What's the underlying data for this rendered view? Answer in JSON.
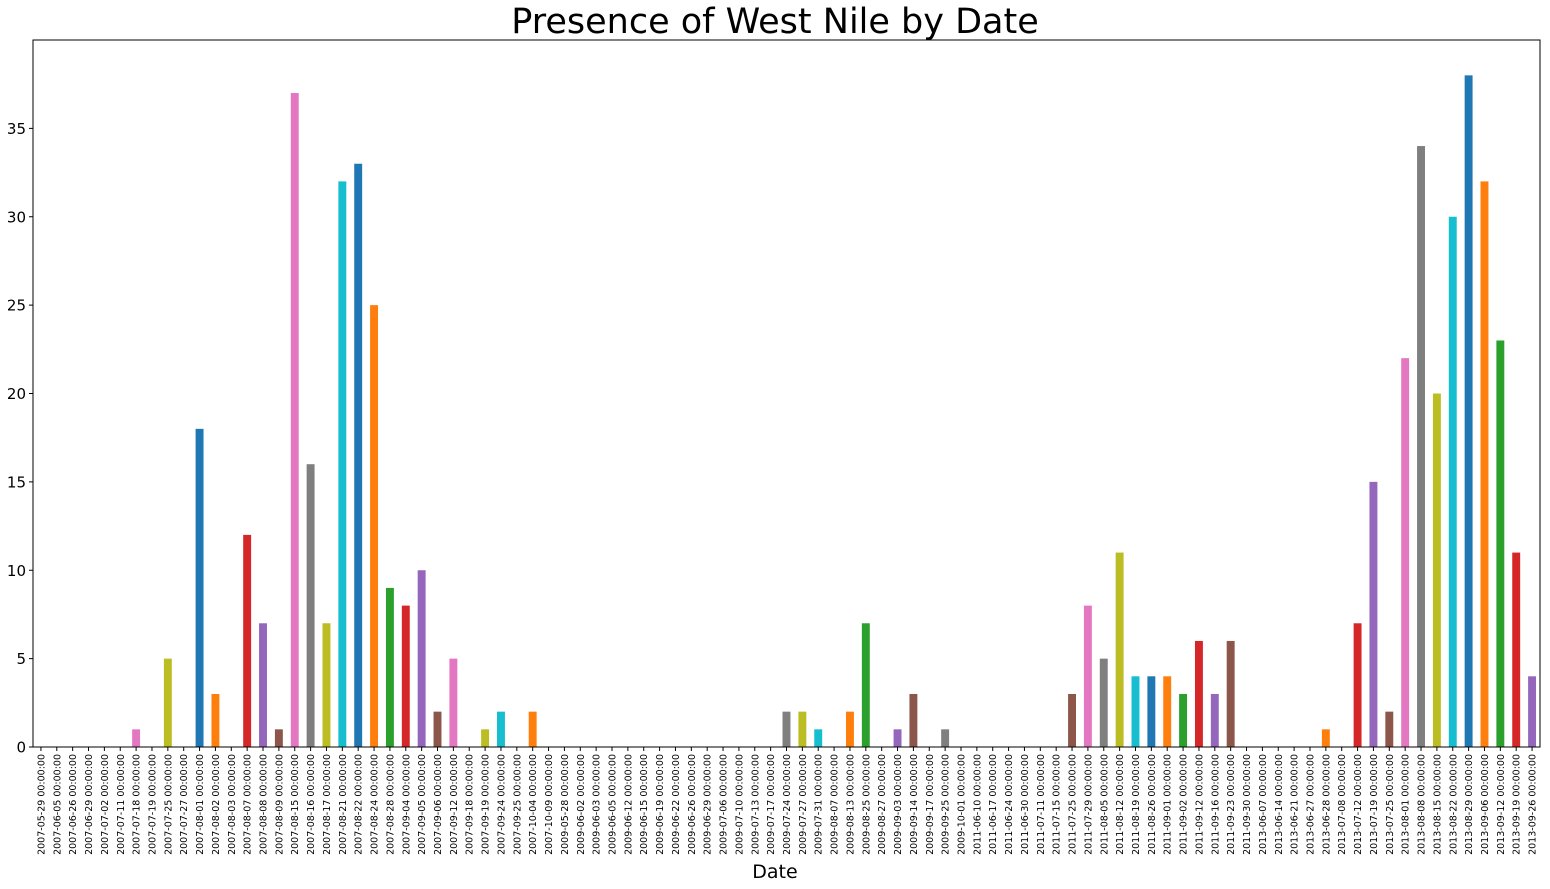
{
  "chart_data": {
    "type": "bar",
    "title": "Presence of West Nile by Date",
    "xlabel": "Date",
    "ylabel": "",
    "ylim": [
      0,
      40
    ],
    "yticks": [
      0,
      5,
      10,
      15,
      20,
      25,
      30,
      35
    ],
    "grid": false,
    "legend": "none",
    "palette": [
      "#1f77b4",
      "#ff7f0e",
      "#2ca02c",
      "#d62728",
      "#9467bd",
      "#8c564b",
      "#e377c2",
      "#7f7f7f",
      "#bcbd22",
      "#17becf"
    ],
    "categories": [
      "2007-05-29 00:00:00",
      "2007-06-05 00:00:00",
      "2007-06-26 00:00:00",
      "2007-06-29 00:00:00",
      "2007-07-02 00:00:00",
      "2007-07-11 00:00:00",
      "2007-07-18 00:00:00",
      "2007-07-19 00:00:00",
      "2007-07-25 00:00:00",
      "2007-07-27 00:00:00",
      "2007-08-01 00:00:00",
      "2007-08-02 00:00:00",
      "2007-08-03 00:00:00",
      "2007-08-07 00:00:00",
      "2007-08-08 00:00:00",
      "2007-08-09 00:00:00",
      "2007-08-15 00:00:00",
      "2007-08-16 00:00:00",
      "2007-08-17 00:00:00",
      "2007-08-21 00:00:00",
      "2007-08-22 00:00:00",
      "2007-08-24 00:00:00",
      "2007-08-28 00:00:00",
      "2007-09-04 00:00:00",
      "2007-09-05 00:00:00",
      "2007-09-06 00:00:00",
      "2007-09-12 00:00:00",
      "2007-09-18 00:00:00",
      "2007-09-19 00:00:00",
      "2007-09-24 00:00:00",
      "2007-09-25 00:00:00",
      "2007-10-04 00:00:00",
      "2007-10-09 00:00:00",
      "2009-05-28 00:00:00",
      "2009-06-02 00:00:00",
      "2009-06-03 00:00:00",
      "2009-06-05 00:00:00",
      "2009-06-12 00:00:00",
      "2009-06-15 00:00:00",
      "2009-06-19 00:00:00",
      "2009-06-22 00:00:00",
      "2009-06-26 00:00:00",
      "2009-06-29 00:00:00",
      "2009-07-06 00:00:00",
      "2009-07-10 00:00:00",
      "2009-07-13 00:00:00",
      "2009-07-17 00:00:00",
      "2009-07-24 00:00:00",
      "2009-07-27 00:00:00",
      "2009-07-31 00:00:00",
      "2009-08-07 00:00:00",
      "2009-08-13 00:00:00",
      "2009-08-25 00:00:00",
      "2009-08-27 00:00:00",
      "2009-09-03 00:00:00",
      "2009-09-14 00:00:00",
      "2009-09-17 00:00:00",
      "2009-09-25 00:00:00",
      "2009-10-01 00:00:00",
      "2011-06-10 00:00:00",
      "2011-06-17 00:00:00",
      "2011-06-24 00:00:00",
      "2011-06-30 00:00:00",
      "2011-07-11 00:00:00",
      "2011-07-15 00:00:00",
      "2011-07-25 00:00:00",
      "2011-07-29 00:00:00",
      "2011-08-05 00:00:00",
      "2011-08-12 00:00:00",
      "2011-08-19 00:00:00",
      "2011-08-26 00:00:00",
      "2011-09-01 00:00:00",
      "2011-09-02 00:00:00",
      "2011-09-12 00:00:00",
      "2011-09-16 00:00:00",
      "2011-09-23 00:00:00",
      "2011-09-30 00:00:00",
      "2013-06-07 00:00:00",
      "2013-06-14 00:00:00",
      "2013-06-21 00:00:00",
      "2013-06-27 00:00:00",
      "2013-06-28 00:00:00",
      "2013-07-08 00:00:00",
      "2013-07-12 00:00:00",
      "2013-07-19 00:00:00",
      "2013-07-25 00:00:00",
      "2013-08-01 00:00:00",
      "2013-08-08 00:00:00",
      "2013-08-15 00:00:00",
      "2013-08-22 00:00:00",
      "2013-08-29 00:00:00",
      "2013-09-06 00:00:00",
      "2013-09-12 00:00:00",
      "2013-09-19 00:00:00",
      "2013-09-26 00:00:00"
    ],
    "values": [
      0,
      0,
      0,
      0,
      0,
      0,
      1,
      0,
      5,
      0,
      18,
      3,
      0,
      12,
      7,
      1,
      37,
      16,
      7,
      32,
      33,
      25,
      9,
      8,
      10,
      2,
      5,
      0,
      1,
      2,
      0,
      2,
      0,
      0,
      0,
      0,
      0,
      0,
      0,
      0,
      0,
      0,
      0,
      0,
      0,
      0,
      0,
      2,
      2,
      1,
      0,
      2,
      7,
      0,
      1,
      3,
      0,
      1,
      0,
      0,
      0,
      0,
      0,
      0,
      0,
      3,
      8,
      5,
      11,
      4,
      4,
      4,
      3,
      6,
      3,
      6,
      0,
      0,
      0,
      0,
      0,
      1,
      0,
      7,
      15,
      2,
      22,
      34,
      20,
      30,
      38,
      32,
      23,
      11,
      4
    ]
  }
}
